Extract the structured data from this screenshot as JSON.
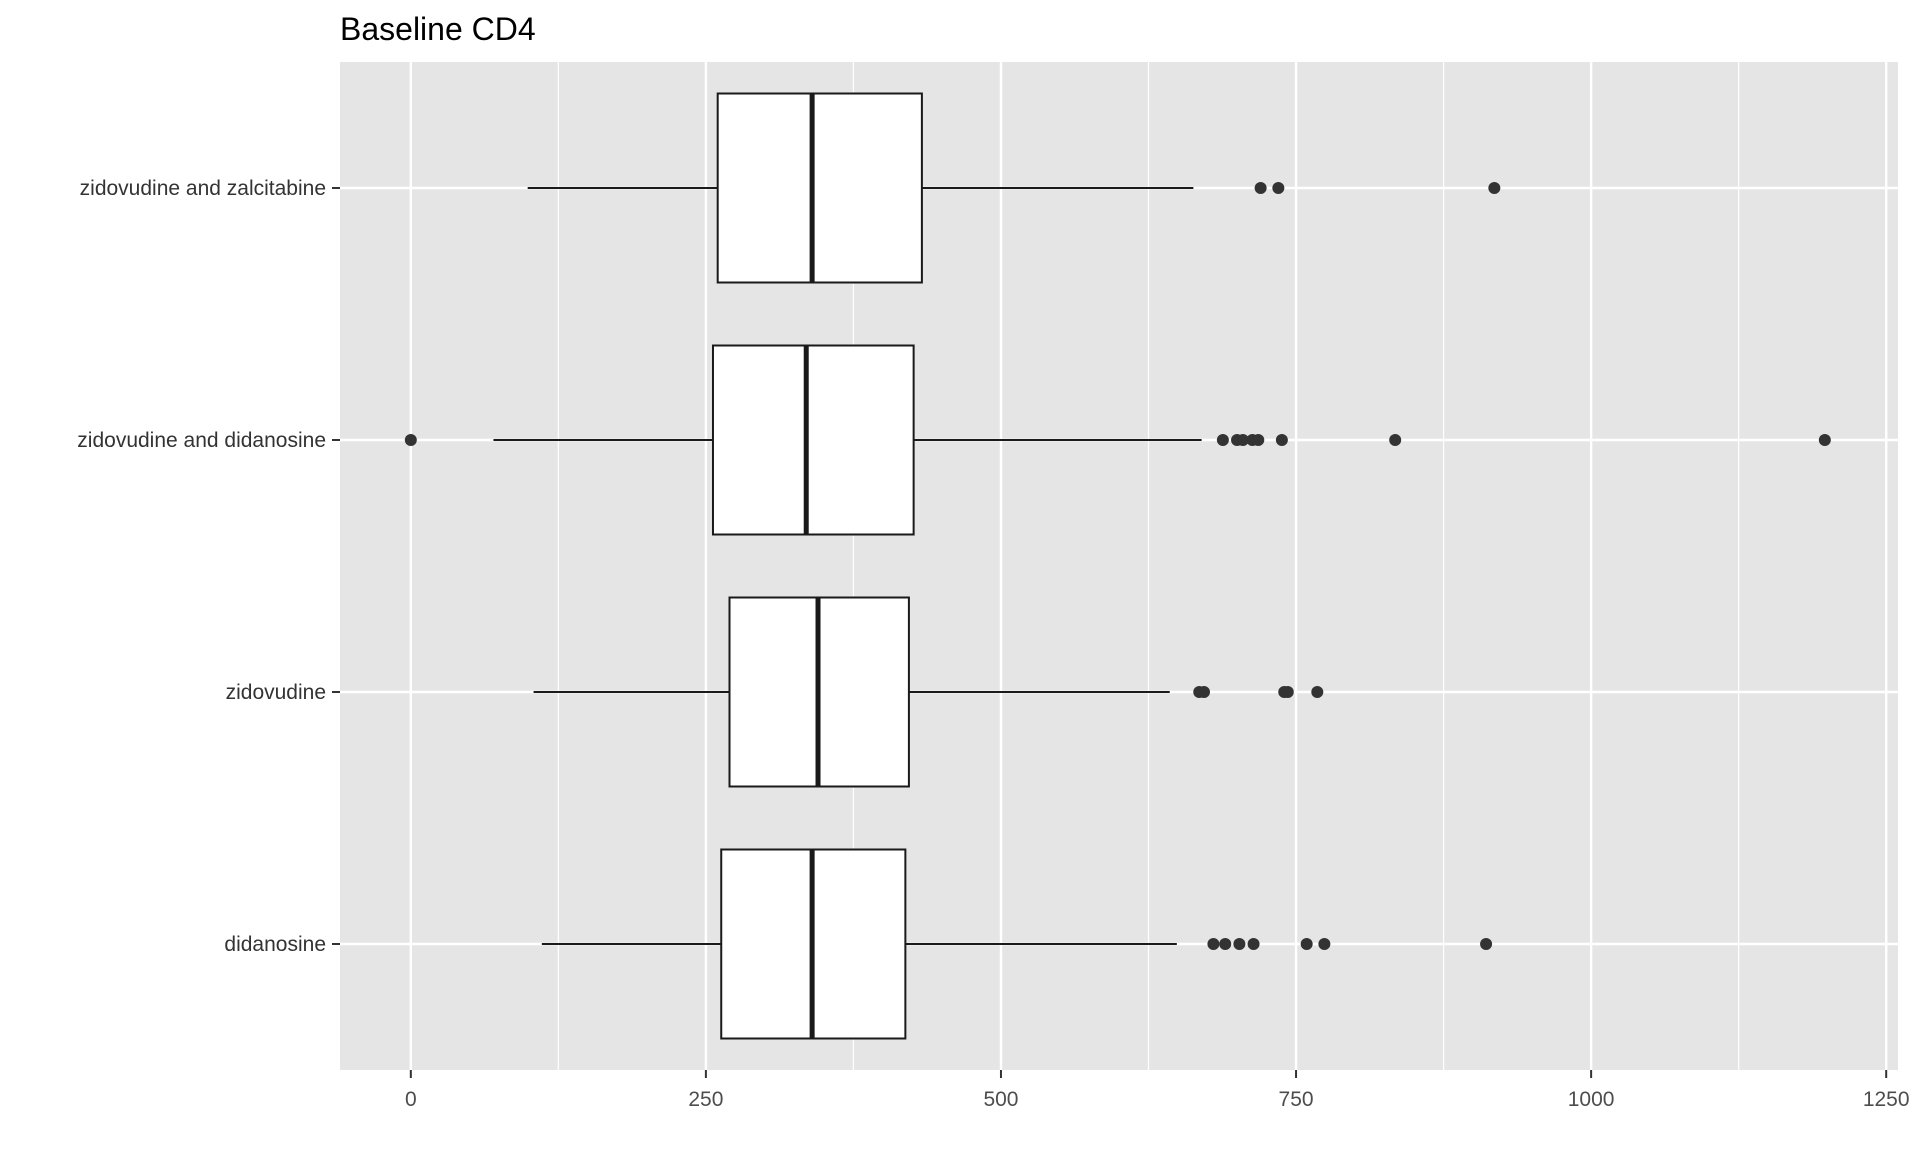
{
  "chart_data": {
    "type": "boxplot",
    "orientation": "horizontal",
    "title": "Baseline CD4",
    "xlabel": "",
    "ylabel": "",
    "xlim": [
      -60,
      1260
    ],
    "x_ticks": [
      0,
      250,
      500,
      750,
      1000,
      1250
    ],
    "x_tick_labels": [
      "0",
      "250",
      "500",
      "750",
      "1000",
      "1250"
    ],
    "grid": true,
    "legend": "none",
    "categories": [
      "zidovudine and zalcitabine",
      "zidovudine and didanosine",
      "zidovudine",
      "didanosine"
    ],
    "boxes": [
      {
        "q1": 260,
        "median": 340,
        "q3": 433,
        "whisker_low": 99,
        "whisker_high": 663,
        "outliers": [
          720,
          735,
          918
        ]
      },
      {
        "q1": 256,
        "median": 335,
        "q3": 426,
        "whisker_low": 70,
        "whisker_high": 670,
        "outliers": [
          0,
          688,
          700,
          705,
          713,
          718,
          738,
          834,
          1198
        ]
      },
      {
        "q1": 270,
        "median": 345,
        "q3": 422,
        "whisker_low": 104,
        "whisker_high": 643,
        "outliers": [
          668,
          672,
          740,
          743,
          768
        ]
      },
      {
        "q1": 263,
        "median": 340,
        "q3": 419,
        "whisker_low": 111,
        "whisker_high": 649,
        "outliers": [
          680,
          690,
          702,
          714,
          759,
          774,
          911
        ]
      }
    ],
    "colors": {
      "panel_background": "#e5e5e5",
      "grid_line": "#ffffff",
      "box_fill": "#ffffff",
      "box_stroke": "#1a1a1a",
      "outlier": "#333333"
    }
  }
}
